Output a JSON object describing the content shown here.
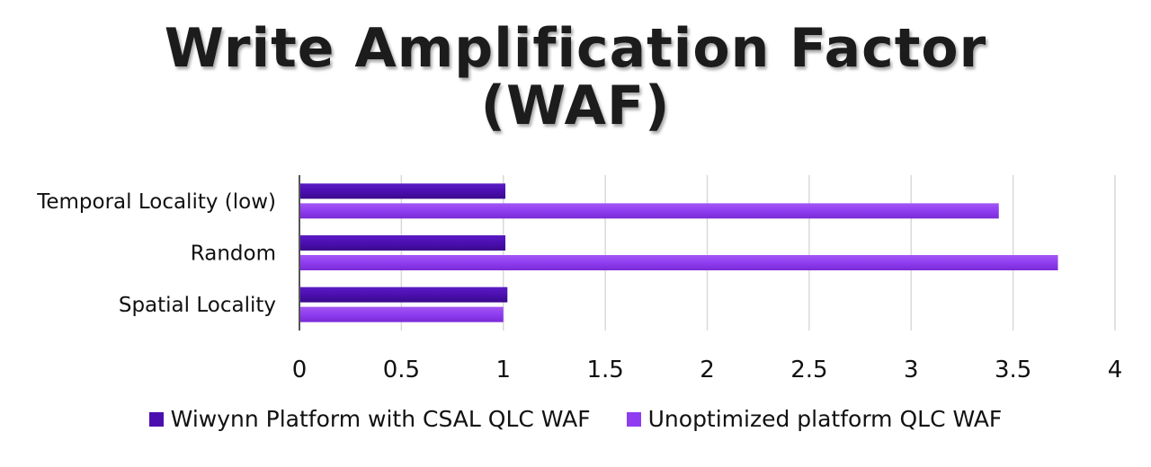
{
  "chart_data": {
    "type": "bar",
    "orientation": "horizontal",
    "title_lines": [
      "Write Amplification Factor",
      "(WAF)"
    ],
    "categories": [
      "Temporal Locality (low)",
      "Random",
      "Spatial Locality"
    ],
    "series": [
      {
        "name": "Wiwynn Platform with CSAL QLC WAF",
        "values": [
          1.01,
          1.01,
          1.02
        ],
        "color": "#4b0fb0"
      },
      {
        "name": "Unoptimized platform QLC WAF",
        "values": [
          3.43,
          3.72,
          1.0
        ],
        "color": "#8f3df0"
      }
    ],
    "xlim": [
      0,
      4
    ],
    "xticks": [
      "0",
      "0.5",
      "1",
      "1.5",
      "2",
      "2.5",
      "3",
      "3.5",
      "4"
    ],
    "xtick_values": [
      0,
      0.5,
      1,
      1.5,
      2,
      2.5,
      3,
      3.5,
      4
    ],
    "grid": true,
    "legend_position": "bottom"
  }
}
